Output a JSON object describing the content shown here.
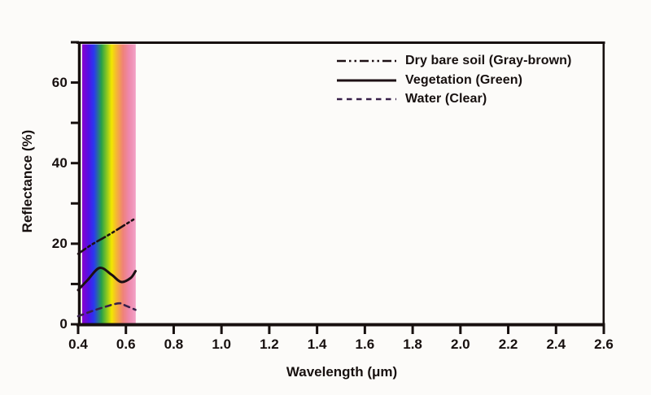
{
  "figure": {
    "background_color": "#fcfbf9",
    "ink_color": "#17100f"
  },
  "chart_data": {
    "type": "line",
    "title": "",
    "xlabel": "Wavelength (μm)",
    "ylabel": "Reflectance (%)",
    "xlim": [
      0.4,
      2.6
    ],
    "ylim": [
      0,
      70
    ],
    "grid": false,
    "legend_position": "top-right-inside",
    "x_tick_values": [
      0.4,
      0.6,
      0.8,
      1.0,
      1.2,
      1.4,
      1.6,
      1.8,
      2.0,
      2.2,
      2.4,
      2.6
    ],
    "x_tick_labels": [
      "0.4",
      "0.6",
      "0.8",
      "1.0",
      "1.2",
      "1.4",
      "1.6",
      "1.8",
      "2.0",
      "2.2",
      "2.4",
      "2.6"
    ],
    "y_tick_values": [
      0,
      10,
      20,
      30,
      40,
      50,
      60,
      70
    ],
    "y_tick_labels": [
      "0",
      "",
      "20",
      "",
      "40",
      "",
      "60",
      ""
    ],
    "visible_spectrum_band": {
      "x_start": 0.417,
      "x_end": 0.641,
      "note": "Rainbow band marking the visible spectrum; curves are drawn only inside this band, the rest of the plot is blank.",
      "gradient_stops": [
        {
          "pos": 0.0,
          "color": "#8a00cc"
        },
        {
          "pos": 0.12,
          "color": "#5012e6"
        },
        {
          "pos": 0.22,
          "color": "#2a38f0"
        },
        {
          "pos": 0.36,
          "color": "#28a04a"
        },
        {
          "pos": 0.46,
          "color": "#8cc820"
        },
        {
          "pos": 0.55,
          "color": "#f2e600"
        },
        {
          "pos": 0.65,
          "color": "#f5b03a"
        },
        {
          "pos": 0.76,
          "color": "#ef8277"
        },
        {
          "pos": 0.87,
          "color": "#ee87ab"
        },
        {
          "pos": 1.0,
          "color": "#f2a2c6"
        }
      ]
    },
    "series": [
      {
        "name": "Dry bare soil (Gray-brown)",
        "line_style": "dash-dot-dot",
        "color": "#1d1014",
        "points": [
          [
            0.4,
            17.5
          ],
          [
            0.46,
            19.9
          ],
          [
            0.52,
            21.9
          ],
          [
            0.58,
            24.1
          ],
          [
            0.64,
            26.3
          ]
        ]
      },
      {
        "name": "Vegetation (Green)",
        "line_style": "solid",
        "color": "#1d1014",
        "points": [
          [
            0.4,
            8.5
          ],
          [
            0.44,
            11.0
          ],
          [
            0.49,
            14.0
          ],
          [
            0.54,
            12.3
          ],
          [
            0.58,
            10.5
          ],
          [
            0.62,
            11.5
          ],
          [
            0.64,
            13.2
          ]
        ]
      },
      {
        "name": "Water (Clear)",
        "line_style": "dashed",
        "color": "#38204a",
        "points": [
          [
            0.4,
            2.0
          ],
          [
            0.45,
            3.1
          ],
          [
            0.5,
            4.1
          ],
          [
            0.57,
            5.2
          ],
          [
            0.6,
            4.6
          ],
          [
            0.64,
            3.6
          ]
        ]
      }
    ]
  }
}
